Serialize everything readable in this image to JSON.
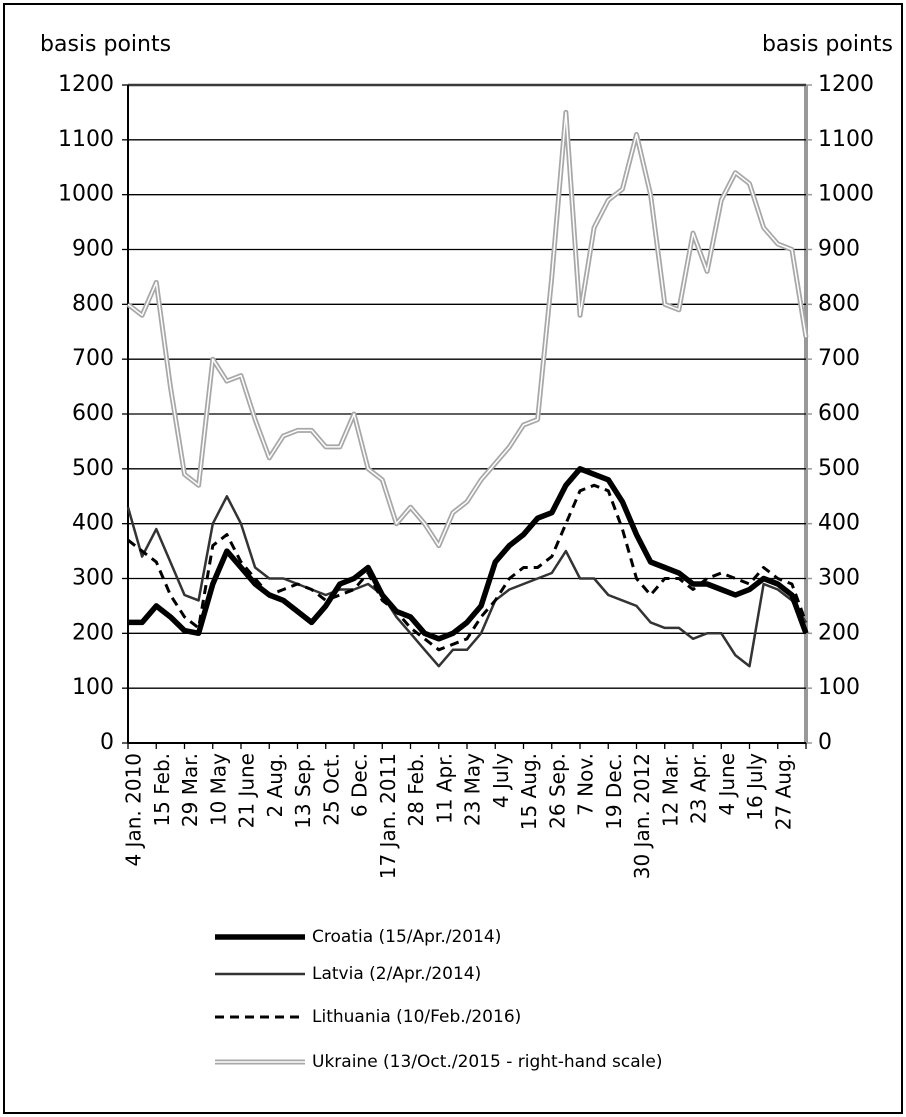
{
  "chart_data": {
    "type": "line",
    "y_label": "basis points",
    "y2_label": "basis points",
    "categories": [
      "4 Jan. 2010",
      null,
      "15 Feb.",
      null,
      "29 Mar.",
      null,
      "10 May",
      null,
      "21 June",
      null,
      "2 Aug.",
      null,
      "13 Sep.",
      null,
      "25 Oct.",
      null,
      "6 Dec.",
      null,
      "17 Jan. 2011",
      null,
      "28 Feb.",
      null,
      "11 Apr.",
      null,
      "23 May",
      null,
      "4 July",
      null,
      "15 Aug.",
      null,
      "26 Sep.",
      null,
      "7 Nov.",
      null,
      "19 Dec.",
      null,
      "30 Jan. 2012",
      null,
      "12 Mar.",
      null,
      "23 Apr.",
      null,
      "4 June",
      null,
      "16 July",
      null,
      "27 Aug.",
      null,
      null
    ],
    "series": [
      {
        "name": "Croatia (15/Apr./2014)",
        "color": "#000000",
        "values": [
          220,
          220,
          250,
          230,
          205,
          200,
          290,
          350,
          320,
          290,
          270,
          260,
          240,
          220,
          250,
          290,
          300,
          320,
          270,
          240,
          230,
          200,
          190,
          200,
          220,
          250,
          330,
          360,
          380,
          410,
          420,
          470,
          500,
          490,
          480,
          440,
          380,
          330,
          320,
          310,
          290,
          290,
          280,
          270,
          280,
          300,
          290,
          270,
          200
        ]
      },
      {
        "name": "Latvia (2/Apr./2014)",
        "color": "#333333",
        "values": [
          430,
          340,
          390,
          330,
          270,
          260,
          400,
          450,
          400,
          320,
          300,
          300,
          290,
          280,
          270,
          280,
          280,
          290,
          270,
          230,
          200,
          170,
          140,
          170,
          170,
          200,
          260,
          280,
          290,
          300,
          310,
          350,
          300,
          300,
          270,
          260,
          250,
          220,
          210,
          210,
          190,
          200,
          200,
          160,
          140,
          290,
          280,
          260,
          220
        ]
      },
      {
        "name": "Lithuania (10/Feb./2016)",
        "color": "#000000",
        "values": [
          370,
          350,
          330,
          270,
          230,
          210,
          360,
          380,
          330,
          300,
          270,
          280,
          290,
          280,
          260,
          270,
          280,
          310,
          260,
          240,
          210,
          190,
          170,
          180,
          190,
          230,
          260,
          300,
          320,
          320,
          340,
          400,
          460,
          470,
          460,
          390,
          300,
          270,
          300,
          300,
          280,
          300,
          310,
          300,
          290,
          320,
          300,
          290,
          220
        ]
      },
      {
        "name": "Ukraine (13/Oct./2015 - right-hand scale)",
        "color": "#a8a8a8",
        "axis": "y2",
        "values": [
          800,
          780,
          840,
          650,
          490,
          470,
          700,
          660,
          670,
          590,
          520,
          560,
          570,
          570,
          540,
          540,
          600,
          500,
          480,
          400,
          430,
          400,
          360,
          420,
          440,
          480,
          510,
          540,
          580,
          590,
          850,
          1150,
          780,
          940,
          990,
          1010,
          1110,
          1000,
          800,
          790,
          930,
          860,
          990,
          1040,
          1020,
          940,
          910,
          900,
          740
        ]
      }
    ],
    "ylim": [
      0,
      1200
    ],
    "yticks": [
      0,
      100,
      200,
      300,
      400,
      500,
      600,
      700,
      800,
      900,
      1000,
      1100,
      1200
    ],
    "y2lim": [
      0,
      1200
    ],
    "y2ticks": [
      0,
      100,
      200,
      300,
      400,
      500,
      600,
      700,
      800,
      900,
      1000,
      1100,
      1200
    ],
    "grid": true
  }
}
